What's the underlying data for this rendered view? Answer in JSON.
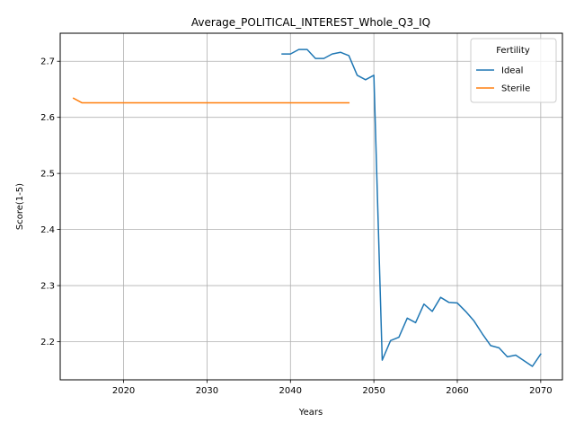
{
  "chart_data": {
    "type": "line",
    "title": "Average_POLITICAL_INTEREST_Whole_Q3_IQ",
    "xlabel": "Years",
    "ylabel": "Score(1-5)",
    "xlim": [
      2012.4,
      2072.6
    ],
    "ylim": [
      2.132,
      2.75
    ],
    "xticks": [
      2020,
      2030,
      2040,
      2050,
      2060,
      2070
    ],
    "yticks": [
      2.2,
      2.3,
      2.4,
      2.5,
      2.6,
      2.7
    ],
    "grid": true,
    "legend": {
      "title": "Fertility",
      "placement": "top-right"
    },
    "series": [
      {
        "name": "Ideal",
        "color": "#1f77b4",
        "x": [
          2039,
          2040,
          2041,
          2042,
          2043,
          2044,
          2045,
          2046,
          2047,
          2048,
          2049,
          2050,
          2051,
          2052,
          2053,
          2054,
          2055,
          2056,
          2057,
          2058,
          2059,
          2060,
          2061,
          2062,
          2063,
          2064,
          2065,
          2066,
          2067,
          2068,
          2069,
          2070
        ],
        "y": [
          2.713,
          2.713,
          2.721,
          2.721,
          2.705,
          2.705,
          2.713,
          2.716,
          2.71,
          2.675,
          2.667,
          2.675,
          2.167,
          2.202,
          2.208,
          2.242,
          2.234,
          2.267,
          2.254,
          2.279,
          2.27,
          2.269,
          2.254,
          2.237,
          2.214,
          2.193,
          2.189,
          2.173,
          2.176,
          2.166,
          2.156,
          2.178
        ]
      },
      {
        "name": "Sterile",
        "color": "#ff7f0e",
        "x": [
          2014,
          2015,
          2016,
          2017,
          2018,
          2019,
          2020,
          2021,
          2022,
          2023,
          2024,
          2025,
          2026,
          2027,
          2028,
          2029,
          2030,
          2031,
          2032,
          2033,
          2034,
          2035,
          2036,
          2037,
          2038,
          2039,
          2040,
          2041,
          2042,
          2043,
          2044,
          2045,
          2046,
          2047
        ],
        "y": [
          2.634,
          2.626,
          2.626,
          2.626,
          2.626,
          2.626,
          2.626,
          2.626,
          2.626,
          2.626,
          2.626,
          2.626,
          2.626,
          2.626,
          2.626,
          2.626,
          2.626,
          2.626,
          2.626,
          2.626,
          2.626,
          2.626,
          2.626,
          2.626,
          2.626,
          2.626,
          2.626,
          2.626,
          2.626,
          2.626,
          2.626,
          2.626,
          2.626,
          2.626
        ]
      }
    ]
  }
}
